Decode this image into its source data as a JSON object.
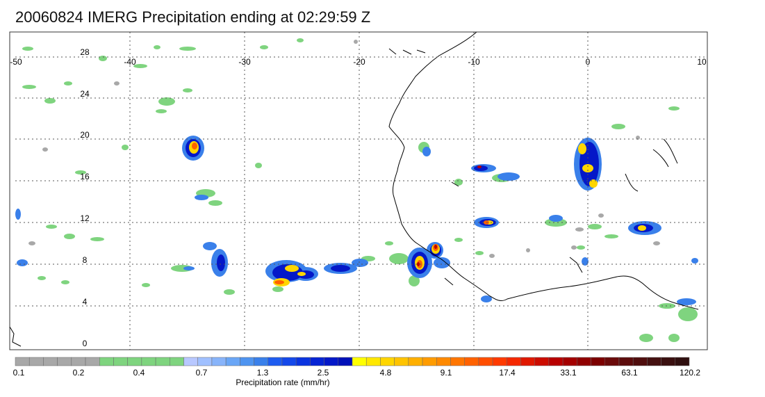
{
  "title": "20060824 IMERG Precipitation ending at 02:29:59 Z",
  "map": {
    "lon_labels": [
      "-50",
      "-40",
      "-30",
      "-20",
      "-10",
      "0",
      "10"
    ],
    "lat_labels": [
      "28",
      "24",
      "20",
      "16",
      "12",
      "8",
      "4",
      "0"
    ],
    "lon_range": [
      -50,
      10
    ],
    "lat_range": [
      -0.5,
      29.5
    ],
    "grid": "dotted"
  },
  "legend": {
    "label": "Precipitation rate (mm/hr)",
    "tick_labels": [
      "0.1",
      "0.2",
      "0.4",
      "0.7",
      "1.3",
      "2.5",
      "4.8",
      "9.1",
      "17.4",
      "33.1",
      "63.1",
      "120.2"
    ],
    "colors": [
      "#a8a8a8",
      "#a8a8a8",
      "#a8a8a8",
      "#a8a8a8",
      "#a8a8a8",
      "#a8a8a8",
      "#7fd47f",
      "#7fd47f",
      "#7fd47f",
      "#7fd47f",
      "#7fd47f",
      "#7fd47f",
      "#b8c8ff",
      "#a0c0ff",
      "#88b4fa",
      "#6aa6f6",
      "#4e94f0",
      "#3a80ea",
      "#1e5cf0",
      "#1448ea",
      "#0a34e0",
      "#0624d4",
      "#0418c8",
      "#0010b8",
      "#ffff00",
      "#ffe800",
      "#ffd600",
      "#ffc400",
      "#ffb000",
      "#ff9c00",
      "#ff8a00",
      "#ff7600",
      "#ff6200",
      "#ff4e00",
      "#ff3a00",
      "#f52800",
      "#e01800",
      "#cc0c00",
      "#b80000",
      "#a40000",
      "#900000",
      "#7c0000",
      "#6a0a0a",
      "#5c0c0c",
      "#500e0e",
      "#441010",
      "#3a1010",
      "#301010"
    ]
  }
}
